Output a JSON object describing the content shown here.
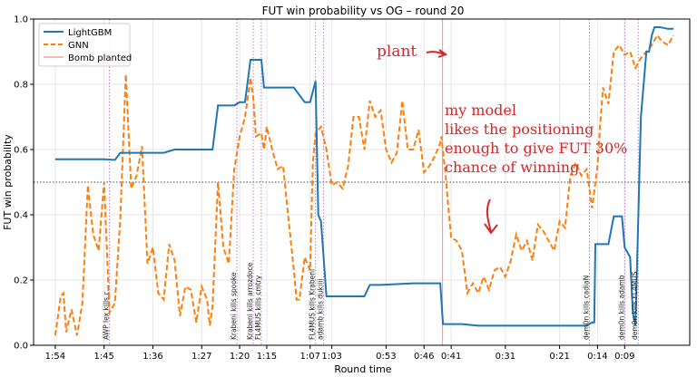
{
  "chart_data": {
    "type": "line",
    "title": "FUT win probability vs OG – round 20",
    "xlabel": "Round time",
    "ylabel": "FUT win probability",
    "ylim": [
      0,
      1.0
    ],
    "yticks": [
      "0.0",
      "0.2",
      "0.4",
      "0.6",
      "0.8",
      "1.0"
    ],
    "xticks": [
      {
        "t": 114,
        "label": "1:54"
      },
      {
        "t": 105,
        "label": "1:45"
      },
      {
        "t": 96,
        "label": "1:36"
      },
      {
        "t": 87,
        "label": "1:27"
      },
      {
        "t": 80,
        "label": "1:20"
      },
      {
        "t": 75,
        "label": "1:15"
      },
      {
        "t": 67,
        "label": "1:07"
      },
      {
        "t": 63,
        "label": "1:03"
      },
      {
        "t": 53,
        "label": "0:53"
      },
      {
        "t": 46,
        "label": "0:46"
      },
      {
        "t": 41,
        "label": "0:41"
      },
      {
        "t": 31,
        "label": "0:31"
      },
      {
        "t": 21,
        "label": "0:21"
      },
      {
        "t": 14,
        "label": "0:14"
      },
      {
        "t": 9,
        "label": "0:09"
      }
    ],
    "grid": true,
    "legend_position": "top-left",
    "threshold": 0.5,
    "series": [
      {
        "name": "LightGBM",
        "color": "#1f77b4",
        "style": "solid",
        "values": [
          [
            114,
            0.57
          ],
          [
            110,
            0.57
          ],
          [
            105,
            0.57
          ],
          [
            103,
            0.568
          ],
          [
            102,
            0.59
          ],
          [
            96,
            0.59
          ],
          [
            94,
            0.59
          ],
          [
            92,
            0.6
          ],
          [
            85,
            0.6
          ],
          [
            84,
            0.735
          ],
          [
            81,
            0.735
          ],
          [
            80,
            0.745
          ],
          [
            79,
            0.745
          ],
          [
            78,
            0.875
          ],
          [
            76,
            0.875
          ],
          [
            75.5,
            0.79
          ],
          [
            70,
            0.79
          ],
          [
            68,
            0.745
          ],
          [
            67,
            0.745
          ],
          [
            66,
            0.81
          ],
          [
            65.5,
            0.4
          ],
          [
            65,
            0.38
          ],
          [
            64,
            0.15
          ],
          [
            58,
            0.15
          ],
          [
            57,
            0.15
          ],
          [
            56,
            0.185
          ],
          [
            54,
            0.185
          ],
          [
            48,
            0.19
          ],
          [
            43,
            0.19
          ],
          [
            42.5,
            0.065
          ],
          [
            39,
            0.065
          ],
          [
            36,
            0.06
          ],
          [
            16,
            0.06
          ],
          [
            15,
            0.07
          ],
          [
            14.6,
            0.07
          ],
          [
            14.4,
            0.31
          ],
          [
            12,
            0.31
          ],
          [
            11,
            0.395
          ],
          [
            9.5,
            0.395
          ],
          [
            9,
            0.3
          ],
          [
            8,
            0.27
          ],
          [
            7.5,
            0.1
          ],
          [
            7,
            0.06
          ],
          [
            6,
            0.7
          ],
          [
            5,
            0.9
          ],
          [
            4.5,
            0.9
          ],
          [
            4,
            0.95
          ],
          [
            3.5,
            0.975
          ],
          [
            2.5,
            0.975
          ],
          [
            1,
            0.97
          ],
          [
            0,
            0.97
          ]
        ]
      },
      {
        "name": "GNN",
        "color": "#ff7f0e",
        "style": "dashed",
        "values": [
          [
            114,
            0.03
          ],
          [
            113,
            0.15
          ],
          [
            112.5,
            0.16
          ],
          [
            112,
            0.04
          ],
          [
            111,
            0.11
          ],
          [
            110,
            0.03
          ],
          [
            109,
            0.13
          ],
          [
            108,
            0.49
          ],
          [
            107,
            0.34
          ],
          [
            106,
            0.29
          ],
          [
            105,
            0.5
          ],
          [
            104,
            0.1
          ],
          [
            103,
            0.13
          ],
          [
            102,
            0.39
          ],
          [
            101,
            0.83
          ],
          [
            100,
            0.48
          ],
          [
            99,
            0.52
          ],
          [
            98,
            0.61
          ],
          [
            97,
            0.25
          ],
          [
            96,
            0.3
          ],
          [
            95,
            0.16
          ],
          [
            94,
            0.14
          ],
          [
            93,
            0.31
          ],
          [
            92,
            0.26
          ],
          [
            91,
            0.09
          ],
          [
            90,
            0.18
          ],
          [
            89,
            0.17
          ],
          [
            88,
            0.07
          ],
          [
            87,
            0.18
          ],
          [
            86,
            0.14
          ],
          [
            85.5,
            0.06
          ],
          [
            85,
            0.12
          ],
          [
            84,
            0.5
          ],
          [
            83,
            0.3
          ],
          [
            82,
            0.25
          ],
          [
            81,
            0.54
          ],
          [
            80,
            0.64
          ],
          [
            79,
            0.7
          ],
          [
            78,
            0.82
          ],
          [
            77.5,
            0.76
          ],
          [
            77,
            0.64
          ],
          [
            76,
            0.65
          ],
          [
            75.5,
            0.6
          ],
          [
            75,
            0.67
          ],
          [
            74,
            0.6
          ],
          [
            73,
            0.54
          ],
          [
            72,
            0.55
          ],
          [
            71,
            0.39
          ],
          [
            70,
            0.23
          ],
          [
            69.5,
            0.14
          ],
          [
            69,
            0.14
          ],
          [
            68,
            0.27
          ],
          [
            67,
            0.23
          ],
          [
            66.5,
            0.56
          ],
          [
            66,
            0.65
          ],
          [
            65,
            0.67
          ],
          [
            64,
            0.6
          ],
          [
            63,
            0.49
          ],
          [
            62,
            0.5
          ],
          [
            61,
            0.48
          ],
          [
            60,
            0.55
          ],
          [
            59,
            0.7
          ],
          [
            58,
            0.7
          ],
          [
            57,
            0.6
          ],
          [
            56,
            0.75
          ],
          [
            55,
            0.7
          ],
          [
            54,
            0.72
          ],
          [
            53,
            0.6
          ],
          [
            52,
            0.56
          ],
          [
            51,
            0.59
          ],
          [
            50,
            0.75
          ],
          [
            49,
            0.6
          ],
          [
            48,
            0.6
          ],
          [
            47,
            0.66
          ],
          [
            46,
            0.53
          ],
          [
            45,
            0.55
          ],
          [
            44,
            0.58
          ],
          [
            43,
            0.62
          ],
          [
            42.8,
            0.64
          ],
          [
            42,
            0.52
          ],
          [
            41.5,
            0.42
          ],
          [
            41,
            0.33
          ],
          [
            40,
            0.32
          ],
          [
            39,
            0.29
          ],
          [
            38,
            0.16
          ],
          [
            37,
            0.19
          ],
          [
            36,
            0.16
          ],
          [
            35,
            0.21
          ],
          [
            34,
            0.17
          ],
          [
            33,
            0.23
          ],
          [
            32,
            0.24
          ],
          [
            31,
            0.21
          ],
          [
            30,
            0.26
          ],
          [
            29,
            0.34
          ],
          [
            28,
            0.29
          ],
          [
            27,
            0.32
          ],
          [
            26,
            0.26
          ],
          [
            25,
            0.37
          ],
          [
            24,
            0.35
          ],
          [
            23,
            0.32
          ],
          [
            22,
            0.29
          ],
          [
            21,
            0.38
          ],
          [
            20,
            0.36
          ],
          [
            19,
            0.52
          ],
          [
            18,
            0.56
          ],
          [
            17,
            0.52
          ],
          [
            16,
            0.54
          ],
          [
            15,
            0.42
          ],
          [
            14,
            0.55
          ],
          [
            13.5,
            0.68
          ],
          [
            13,
            0.79
          ],
          [
            12,
            0.74
          ],
          [
            11,
            0.9
          ],
          [
            10,
            0.92
          ],
          [
            9,
            0.89
          ],
          [
            8,
            0.9
          ],
          [
            7,
            0.85
          ],
          [
            6,
            0.88
          ],
          [
            5,
            0.9
          ],
          [
            4,
            0.92
          ],
          [
            3,
            0.95
          ],
          [
            2,
            0.93
          ],
          [
            1,
            0.92
          ],
          [
            0,
            0.95
          ]
        ]
      }
    ],
    "bomb": {
      "name": "Bomb planted",
      "t": 42.6,
      "color": "#f4a0a0"
    },
    "events": [
      {
        "t": 104,
        "label": "AWP lex kills c..."
      },
      {
        "t": 80.5,
        "label": "Krabeni kills spooke"
      },
      {
        "t": 77.5,
        "label": "Krabeni kills arrozdoce"
      },
      {
        "t": 76,
        "label": "FL4MUS kills cmtry"
      },
      {
        "t": 66,
        "label": "FL4MUS kills Krabeni"
      },
      {
        "t": 64.5,
        "label": "adamb kills dukiiii"
      },
      {
        "t": 15.5,
        "label": "dem0n kills cadiaN"
      },
      {
        "t": 9,
        "label": "dem0n kills adamb"
      },
      {
        "t": 6.5,
        "label": "dem0n kills FL4MUS"
      }
    ],
    "annotations": {
      "plant_note": "plant",
      "model_note": [
        "my model",
        "likes the positioning",
        "enough to give FUT 30%",
        "chance of winning"
      ]
    }
  }
}
